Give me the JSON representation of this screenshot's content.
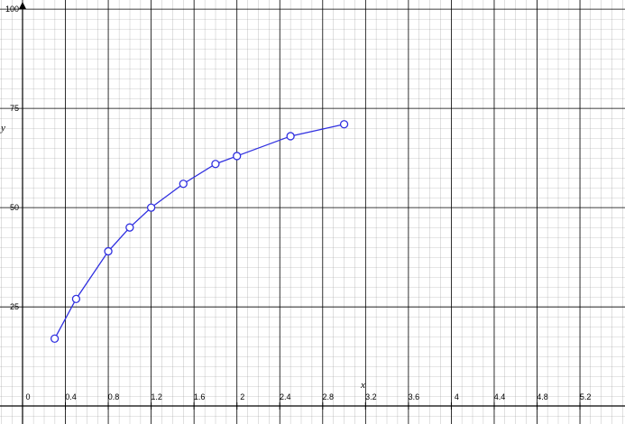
{
  "chart_data": {
    "type": "line",
    "x_label": "x",
    "y_label": "y",
    "x": [
      0.3,
      0.5,
      0.8,
      1,
      1.2,
      1.5,
      1.8,
      2,
      2.5,
      3
    ],
    "series": [
      {
        "color": "#3030e0",
        "values": [
          17,
          27,
          39,
          45,
          50,
          56,
          61,
          63,
          68,
          71
        ]
      }
    ],
    "xlim": [
      -0.21,
      5.62
    ],
    "ylim": [
      -4.5,
      102.3
    ],
    "xticks": [
      0,
      0.4,
      0.8,
      1.2,
      1.6,
      2,
      2.4,
      2.8,
      3.2,
      3.6,
      4,
      4.4,
      4.8,
      5.2
    ],
    "yticks": [
      25,
      50,
      75,
      100
    ],
    "grid": true
  }
}
